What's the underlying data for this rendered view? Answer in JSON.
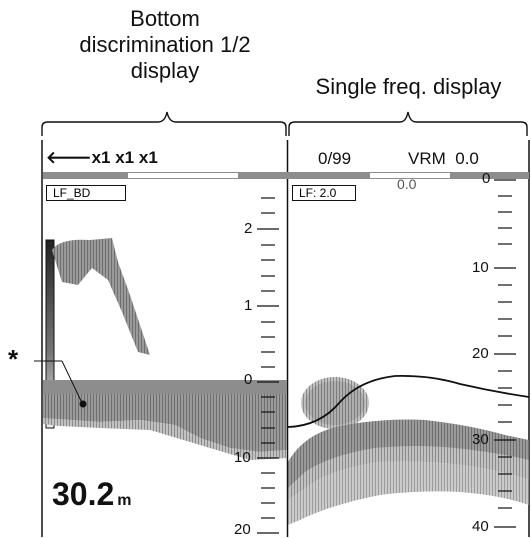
{
  "captions": {
    "left": [
      "Bottom",
      "discrimination 1/2",
      "display"
    ],
    "right": "Single freq. display"
  },
  "header": {
    "zoom_arrow_icon": "left-arrow-icon",
    "zoom_text": "x1 x1 x1",
    "count": "0/99",
    "vrm_label": "VRM",
    "vrm_value": "0.0"
  },
  "left_panel": {
    "mode_box": "LF_BD",
    "scale_ticks": [
      "2",
      "1",
      "0",
      "10",
      "20"
    ],
    "depth_value": "30.2",
    "depth_unit": "m",
    "marker": "*"
  },
  "right_panel": {
    "mode_box": "LF: 2.0",
    "vrm_marker": "0.0",
    "scale_ticks": [
      "0",
      "10",
      "20",
      "30",
      "40"
    ]
  },
  "colors": {
    "echo_dark": "#6f6f6f",
    "echo_mid": "#9a9a9a",
    "echo_light": "#c4c4c4",
    "band_gray": "#8d8d8d",
    "line": "#111111"
  }
}
